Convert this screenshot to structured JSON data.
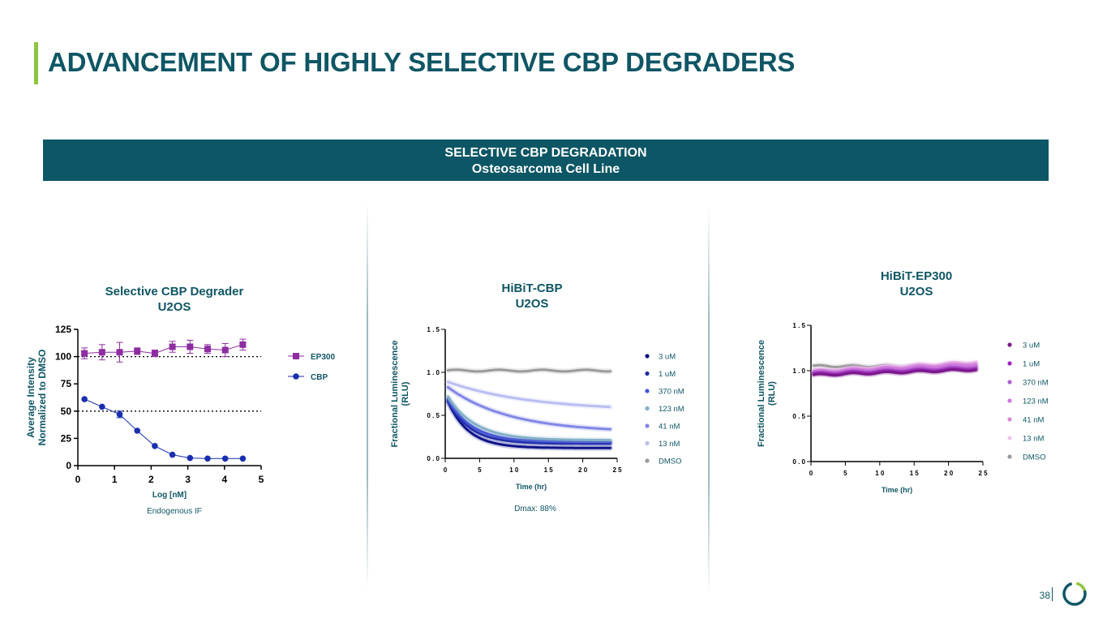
{
  "page": {
    "title": "ADVANCEMENT OF HIGHLY SELECTIVE CBP DEGRADERS",
    "banner_line1": "SELECTIVE CBP DEGRADATION",
    "banner_line2": "Osteosarcoma Cell Line",
    "page_number": "38",
    "logo": "ring-logo-icon"
  },
  "colors": {
    "title": "#0f5665",
    "banner": "#0c5665",
    "accent": "#8dc63f",
    "ep300": "#8e2da1",
    "cbp": "#1a2fb0"
  },
  "chart_data": [
    {
      "type": "scatter",
      "title_line1": "Selective CBP Degrader",
      "title_line2": "U2OS",
      "xlabel": "Log [nM]",
      "ylabel_line1": "Average Intensity",
      "ylabel_line2": "Normalized to DMSO",
      "xlim": [
        0,
        5
      ],
      "ylim": [
        0,
        125
      ],
      "xticks": [
        0,
        1,
        2,
        3,
        4,
        5
      ],
      "yticks": [
        0,
        25,
        50,
        75,
        100,
        125
      ],
      "reference_lines": [
        100,
        50
      ],
      "caption": "Endogenous IF",
      "series": [
        {
          "name": "EP300",
          "color": "#8e2da1",
          "marker": "square",
          "x": [
            0.18,
            0.66,
            1.14,
            1.62,
            2.1,
            2.58,
            3.06,
            3.54,
            4.02,
            4.5
          ],
          "y": [
            103,
            104,
            104,
            105,
            103,
            109,
            109,
            107,
            106,
            111
          ],
          "err": [
            5,
            7,
            9,
            3,
            3,
            5,
            6,
            4,
            6,
            5
          ]
        },
        {
          "name": "CBP",
          "color": "#1a2fb0",
          "marker": "circle",
          "x": [
            0.18,
            0.66,
            1.14,
            1.62,
            2.1,
            2.58,
            3.06,
            3.54,
            4.02,
            4.5
          ],
          "y": [
            61,
            54,
            47,
            32,
            18,
            10,
            7,
            6.5,
            6.5,
            6.5
          ],
          "err": [
            0,
            0,
            3,
            0,
            0,
            0,
            0,
            0,
            0,
            0
          ]
        }
      ]
    },
    {
      "type": "line",
      "title_line1": "HiBiT-CBP",
      "title_line2": "U2OS",
      "xlabel": "Time (hr)",
      "ylabel_line1": "Fractional Luminescence",
      "ylabel_line2": "(RLU)",
      "xlim": [
        0,
        25
      ],
      "ylim": [
        0,
        1.5
      ],
      "xticks": [
        0,
        5,
        10,
        15,
        20,
        25
      ],
      "xtick_labels": [
        "0",
        "5",
        "1 0",
        "1 5",
        "2 0",
        "2 5"
      ],
      "yticks": [
        0,
        0.5,
        1.0,
        1.5
      ],
      "ytick_labels": [
        "0 . 0",
        "0 . 5",
        "1 . 0",
        "1 . 5"
      ],
      "caption": "Dmax: 88%",
      "series": [
        {
          "name": "3 uM",
          "color": "#0c1187",
          "plateau": 0.12,
          "amp": 0.62,
          "tau": 3.0
        },
        {
          "name": "1 uM",
          "color": "#1e2ba3",
          "plateau": 0.17,
          "amp": 0.57,
          "tau": 3.2
        },
        {
          "name": "370 nM",
          "color": "#4654d6",
          "plateau": 0.19,
          "amp": 0.56,
          "tau": 3.5
        },
        {
          "name": "123 nM",
          "color": "#82b0c8",
          "plateau": 0.21,
          "amp": 0.56,
          "tau": 4.0
        },
        {
          "name": "41 nM",
          "color": "#8186e6",
          "plateau": 0.3,
          "amp": 0.55,
          "tau": 9.0
        },
        {
          "name": "13 nM",
          "color": "#b9bdf2",
          "plateau": 0.55,
          "amp": 0.35,
          "tau": 12.0
        },
        {
          "name": "DMSO",
          "color": "#9a9a9a",
          "plateau": 1.02,
          "amp": 0.0,
          "tau": 1.0
        }
      ]
    },
    {
      "type": "line",
      "title_line1": "HiBiT-EP300",
      "title_line2": "U2OS",
      "xlabel": "Time (hr)",
      "ylabel_line1": "Fractional Luminescence",
      "ylabel_line2": "(RLU)",
      "xlim": [
        0,
        25
      ],
      "ylim": [
        0,
        1.5
      ],
      "xticks": [
        0,
        5,
        10,
        15,
        20,
        25
      ],
      "xtick_labels": [
        "0",
        "5",
        "1 0",
        "1 5",
        "2 0",
        "2 5"
      ],
      "yticks": [
        0,
        0.5,
        1.0,
        1.5
      ],
      "ytick_labels": [
        "0 . 0",
        "0 . 5",
        "1 . 0",
        "1 . 5"
      ],
      "series": [
        {
          "name": "3 uM",
          "color": "#7a1a8a",
          "start": 0.95,
          "end": 1.01
        },
        {
          "name": "1 uM",
          "color": "#a024c0",
          "start": 0.96,
          "end": 1.02
        },
        {
          "name": "370 nM",
          "color": "#b060d0",
          "start": 0.97,
          "end": 1.04
        },
        {
          "name": "123 nM",
          "color": "#d27ae0",
          "start": 0.98,
          "end": 1.06
        },
        {
          "name": "41 nM",
          "color": "#d58ad8",
          "start": 0.99,
          "end": 1.08
        },
        {
          "name": "13 nM",
          "color": "#efc4f0",
          "start": 1.0,
          "end": 1.1
        },
        {
          "name": "DMSO",
          "color": "#9a9a9a",
          "start": 1.05,
          "end": 1.05
        }
      ]
    }
  ]
}
